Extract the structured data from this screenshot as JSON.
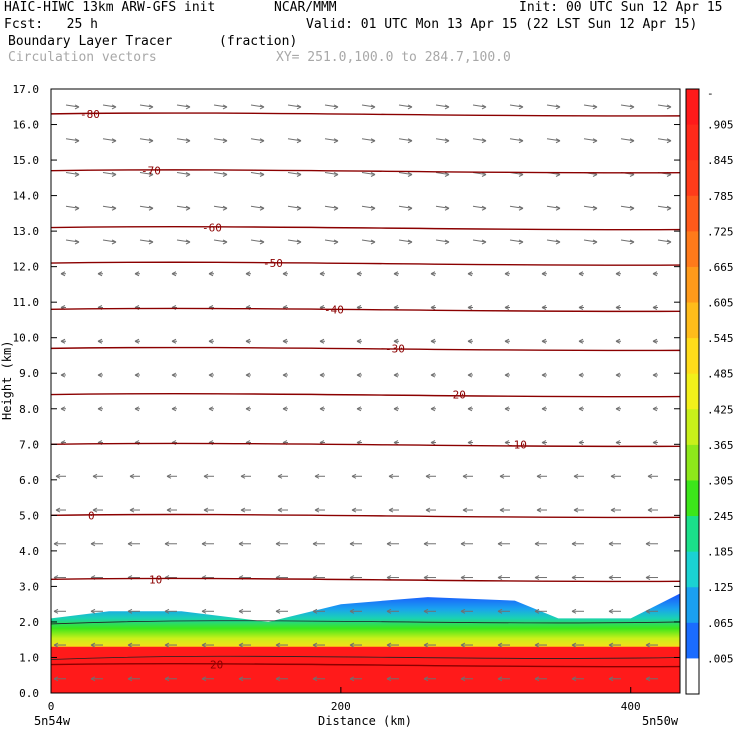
{
  "header": {
    "model_title": "HAIC-HIWC 13km ARW-GFS init",
    "org": "NCAR/MMM",
    "init": "Init: 00 UTC Sun 12 Apr 15",
    "fcst": "Fcst:   25 h",
    "valid": "Valid: 01 UTC Mon 13 Apr 15 (22 LST Sun 12 Apr 15)",
    "field": "Boundary Layer Tracer",
    "field_units": "(fraction)",
    "vectors": "Circulation vectors",
    "xy": "XY= 251.0,100.0 to 284.7,100.0"
  },
  "chart_data": {
    "type": "heatmap",
    "title": "Boundary Layer Tracer",
    "units": "(fraction)",
    "xlabel": "Distance (km)",
    "ylabel": "Height (km)",
    "xlim": [
      0,
      434
    ],
    "ylim": [
      0,
      17
    ],
    "x_ticks": [
      0,
      200,
      400
    ],
    "x_tick_labels": [
      "0",
      "200",
      "400"
    ],
    "x_endpoint_labels": [
      "5n54w",
      "5n50w"
    ],
    "y_ticks": [
      "0.0",
      "1.0",
      "2.0",
      "3.0",
      "4.0",
      "5.0",
      "6.0",
      "7.0",
      "8.0",
      "9.0",
      "10.0",
      "11.0",
      "12.0",
      "13.0",
      "14.0",
      "15.0",
      "16.0",
      "17.0"
    ],
    "colorbar": {
      "labels": [
        "-",
        ".905",
        ".845",
        ".785",
        ".725",
        ".665",
        ".605",
        ".545",
        ".485",
        ".425",
        ".365",
        ".305",
        ".245",
        ".185",
        ".125",
        ".065",
        ".005"
      ],
      "colors": [
        "#ff1a1a",
        "#ff2a1a",
        "#ff3c1a",
        "#ff5a1a",
        "#ff7a1a",
        "#ff9a1a",
        "#ffbc1a",
        "#ffdc1a",
        "#f2f01a",
        "#c8f01a",
        "#8ee81a",
        "#3ce61a",
        "#1ae08a",
        "#1ad2d2",
        "#1aa0f0",
        "#1a6cff",
        "#ffffff"
      ]
    },
    "temperature_contours": [
      {
        "label": "-80",
        "height_km": 16.3
      },
      {
        "label": "-70",
        "height_km": 14.7
      },
      {
        "label": "-60",
        "height_km": 13.1
      },
      {
        "label": "-50",
        "height_km": 12.1
      },
      {
        "label": "-40",
        "height_km": 10.8
      },
      {
        "label": "-30",
        "height_km": 9.7
      },
      {
        "label": "-20",
        "height_km": 8.4
      },
      {
        "label": "-10",
        "height_km": 7.0
      },
      {
        "label": "0",
        "height_km": 5.0
      },
      {
        "label": "10",
        "height_km": 3.2
      },
      {
        "label": "20",
        "height_km": 0.8
      }
    ],
    "tracer_top_km": [
      {
        "x": 0,
        "top": 2.1
      },
      {
        "x": 40,
        "top": 2.3
      },
      {
        "x": 90,
        "top": 2.3
      },
      {
        "x": 150,
        "top": 2.0
      },
      {
        "x": 200,
        "top": 2.5
      },
      {
        "x": 260,
        "top": 2.7
      },
      {
        "x": 320,
        "top": 2.6
      },
      {
        "x": 350,
        "top": 2.1
      },
      {
        "x": 400,
        "top": 2.1
      },
      {
        "x": 434,
        "top": 2.8
      }
    ],
    "grid": false
  }
}
